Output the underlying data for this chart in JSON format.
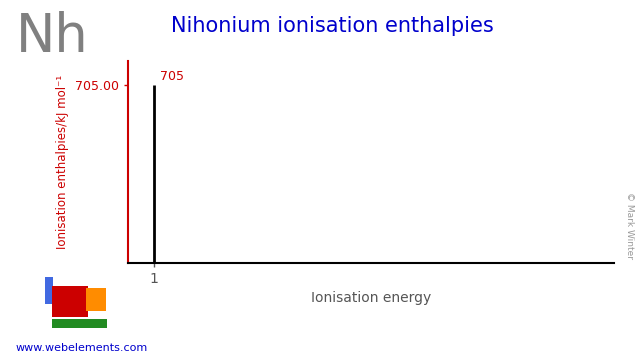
{
  "title": "Nihonium ionisation enthalpies",
  "element_symbol": "Nh",
  "ylabel": "Ionisation enthalpies/kJ mol⁻¹",
  "xlabel": "Ionisation energy",
  "ionisation_energies": [
    705
  ],
  "x_values": [
    1
  ],
  "bar_annotation": "705",
  "ytick_label": "705.00",
  "ylim": [
    0,
    800
  ],
  "xlim": [
    0.5,
    10
  ],
  "background_color": "#ffffff",
  "title_color": "#0000cc",
  "element_color": "#808080",
  "bar_color": "#000000",
  "ylabel_color": "#cc0000",
  "ytick_color": "#cc0000",
  "bar_annotation_color": "#cc0000",
  "xlabel_color": "#555555",
  "xtick_color": "#555555",
  "website_text": "www.webelements.com",
  "website_color": "#0000cc",
  "copyright_text": "© Mark Winter",
  "copyright_color": "#999999",
  "spine_color": "#000000",
  "pt_blue": "#4169e1",
  "pt_red": "#cc0000",
  "pt_orange": "#ff8c00",
  "pt_green": "#228b22"
}
